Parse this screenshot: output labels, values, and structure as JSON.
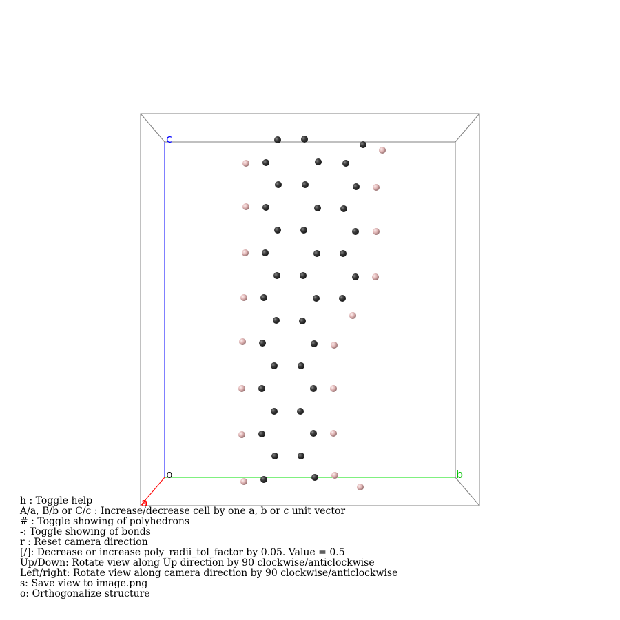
{
  "axes": {
    "a_label": "a",
    "b_label": "b",
    "c_label": "c",
    "origin_label": "o"
  },
  "colors": {
    "background": "#ffffff",
    "cell_edge": "#7f7f7f",
    "axis_a": "#ff0000",
    "axis_b": "#00e000",
    "axis_c": "#0000ff",
    "atom_dark": "#3a3a3a",
    "atom_pink": "#e6bcbc"
  },
  "atom_types": [
    "dark-atom",
    "pink-atom"
  ],
  "help": {
    "lines": [
      "h : Toggle help",
      "A/a, B/b or C/c : Increase/decrease cell by one a, b or c unit vector",
      "# : Toggle showing of polyhedrons",
      "-: Toggle showing of bonds",
      "r : Reset camera direction",
      "[/]: Decrease or increase poly_radii_tol_factor by 0.05. Value = 0.5",
      "Up/Down: Rotate view along Up direction by 90 clockwise/anticlockwise",
      "Left/right: Rotate view along camera direction by 90 clockwise/anticlockwise",
      "s: Save view to image.png",
      "o: Orthogonalize structure"
    ]
  }
}
